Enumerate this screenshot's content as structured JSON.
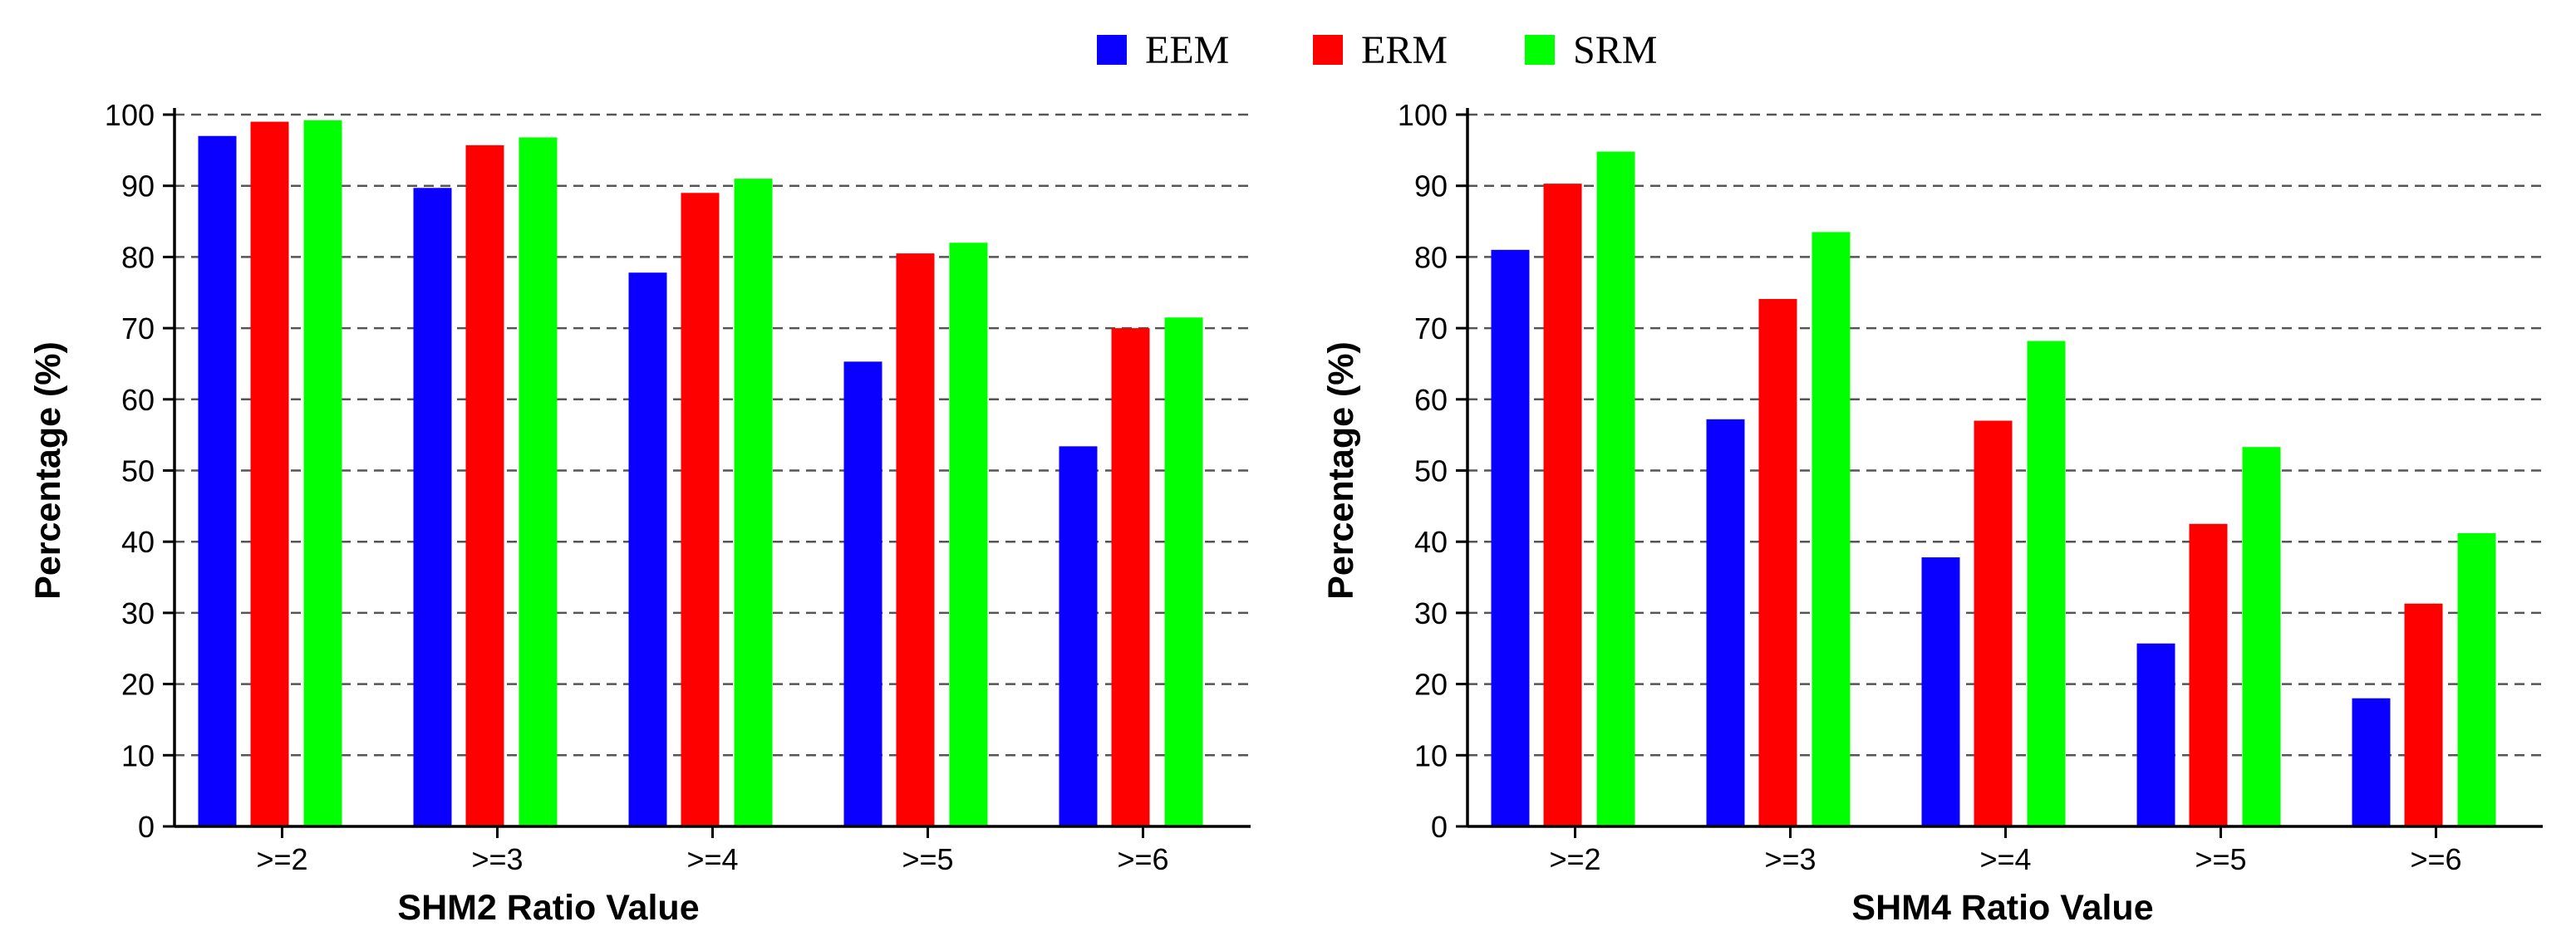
{
  "legend": [
    {
      "name": "EEM",
      "color": "#0a00ff"
    },
    {
      "name": "ERM",
      "color": "#ff0000"
    },
    {
      "name": "SRM",
      "color": "#00ff00"
    }
  ],
  "chart_data": [
    {
      "type": "bar",
      "title": "",
      "xlabel": "SHM2 Ratio Value",
      "ylabel": "Percentage (%)",
      "ylim": [
        0,
        100
      ],
      "yticks": [
        "0",
        "10",
        "20",
        "30",
        "40",
        "50",
        "60",
        "70",
        "80",
        "90",
        "100"
      ],
      "grid": true,
      "categories": [
        ">=2",
        ">=3",
        ">=4",
        ">=5",
        ">=6"
      ],
      "series": [
        {
          "name": "EEM",
          "color": "#0a00ff",
          "values": [
            97,
            89.7,
            77.8,
            65.3,
            53.4
          ]
        },
        {
          "name": "ERM",
          "color": "#ff0000",
          "values": [
            99,
            95.7,
            89,
            80.5,
            70
          ]
        },
        {
          "name": "SRM",
          "color": "#00ff00",
          "values": [
            99.2,
            96.8,
            91,
            82,
            71.5
          ]
        }
      ]
    },
    {
      "type": "bar",
      "title": "",
      "xlabel": "SHM4 Ratio Value",
      "ylabel": "Percentage (%)",
      "ylim": [
        0,
        100
      ],
      "yticks": [
        "0",
        "10",
        "20",
        "30",
        "40",
        "50",
        "60",
        "70",
        "80",
        "90",
        "100"
      ],
      "grid": true,
      "categories": [
        ">=2",
        ">=3",
        ">=4",
        ">=5",
        ">=6"
      ],
      "series": [
        {
          "name": "EEM",
          "color": "#0a00ff",
          "values": [
            81,
            57.2,
            37.8,
            25.7,
            18
          ]
        },
        {
          "name": "ERM",
          "color": "#ff0000",
          "values": [
            90.3,
            74.1,
            57,
            42.5,
            31.3
          ]
        },
        {
          "name": "SRM",
          "color": "#00ff00",
          "values": [
            94.8,
            83.5,
            68.2,
            53.3,
            41.2
          ]
        }
      ]
    }
  ]
}
